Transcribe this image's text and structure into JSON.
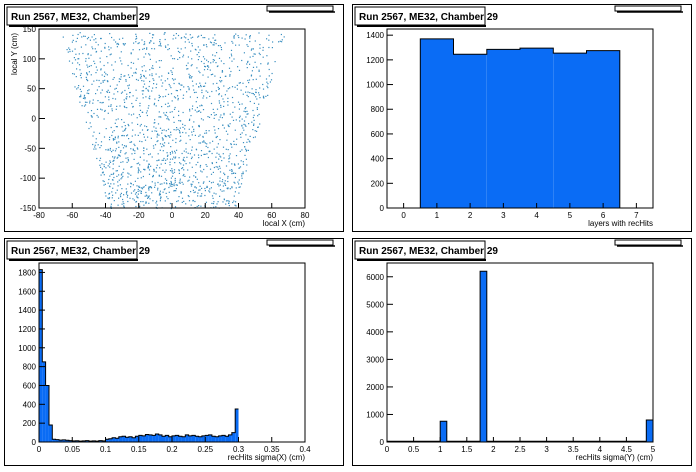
{
  "chart_data": [
    {
      "type": "scatter",
      "title": "Run 2567, ME32, Chamber 29",
      "xlabel": "local X (cm)",
      "ylabel": "local Y (cm)",
      "xlim": [
        -80,
        80
      ],
      "ylim": [
        -150,
        150
      ],
      "xticks": [
        -80,
        -60,
        -40,
        -20,
        0,
        20,
        40,
        60,
        80
      ],
      "yticks": [
        -150,
        -100,
        -50,
        0,
        50,
        100,
        150
      ],
      "marker_color": "#3a8fc0",
      "region": {
        "y_bottom": -150,
        "y_top": 145,
        "half_width_bottom": 38,
        "half_width_top": 68
      }
    },
    {
      "type": "bar",
      "title": "Run 2567, ME32, Chamber 29",
      "xlabel": "layers with recHits",
      "ylabel": "",
      "xlim": [
        -0.5,
        7.5
      ],
      "ylim": [
        0,
        1450
      ],
      "xticks": [
        0,
        1,
        2,
        3,
        4,
        5,
        6,
        7
      ],
      "yticks": [
        0,
        200,
        400,
        600,
        800,
        1000,
        1200,
        1400
      ],
      "x": [
        0,
        1,
        2,
        3,
        4,
        5,
        6,
        7
      ],
      "values": [
        0,
        1370,
        1245,
        1285,
        1295,
        1255,
        1275,
        0
      ],
      "fill": "#0a6cf5"
    },
    {
      "type": "bar",
      "title": "Run 2567, ME32, Chamber 29",
      "xlabel": "recHits sigma(X) (cm)",
      "ylabel": "",
      "xlim": [
        0,
        0.4
      ],
      "ylim": [
        0,
        1900
      ],
      "xticks": [
        0,
        0.05,
        0.1,
        0.15,
        0.2,
        0.25,
        0.3,
        0.35,
        0.4
      ],
      "xtick_labels": [
        "0",
        "0.05",
        "0.1",
        "0.15",
        "0.2",
        "0.25",
        "0.3",
        "0.35",
        "0.4"
      ],
      "yticks": [
        0,
        200,
        400,
        600,
        800,
        1000,
        1200,
        1400,
        1600,
        1800
      ],
      "bin_width": 0.005,
      "values": [
        1830,
        850,
        600,
        180,
        30,
        25,
        20,
        22,
        18,
        15,
        12,
        14,
        10,
        12,
        15,
        10,
        12,
        10,
        15,
        12,
        30,
        35,
        45,
        40,
        55,
        60,
        50,
        55,
        45,
        60,
        70,
        65,
        80,
        75,
        70,
        85,
        75,
        60,
        70,
        55,
        65,
        70,
        60,
        55,
        75,
        65,
        70,
        60,
        55,
        65,
        70,
        75,
        60,
        55,
        65,
        70,
        60,
        75,
        100,
        350
      ],
      "fill": "#0a6cf5"
    },
    {
      "type": "bar",
      "title": "Run 2567, ME32, Chamber 29",
      "xlabel": "recHits sigma(Y) (cm)",
      "ylabel": "",
      "xlim": [
        0,
        5
      ],
      "ylim": [
        0,
        6500
      ],
      "xticks": [
        0,
        0.5,
        1,
        1.5,
        2,
        2.5,
        3,
        3.5,
        4,
        4.5,
        5
      ],
      "xtick_labels": [
        "0",
        "0.5",
        "1",
        "1.5",
        "2",
        "2.5",
        "3",
        "3.5",
        "4",
        "4.5",
        "5"
      ],
      "yticks": [
        0,
        1000,
        2000,
        3000,
        4000,
        5000,
        6000
      ],
      "bin_width": 0.125,
      "values": [
        30,
        30,
        30,
        30,
        30,
        30,
        30,
        30,
        750,
        30,
        30,
        30,
        30,
        30,
        6200,
        30,
        30,
        30,
        30,
        30,
        30,
        30,
        30,
        30,
        30,
        30,
        30,
        30,
        30,
        30,
        30,
        30,
        30,
        30,
        30,
        30,
        30,
        30,
        30,
        800
      ],
      "fill": "#0a6cf5"
    }
  ]
}
